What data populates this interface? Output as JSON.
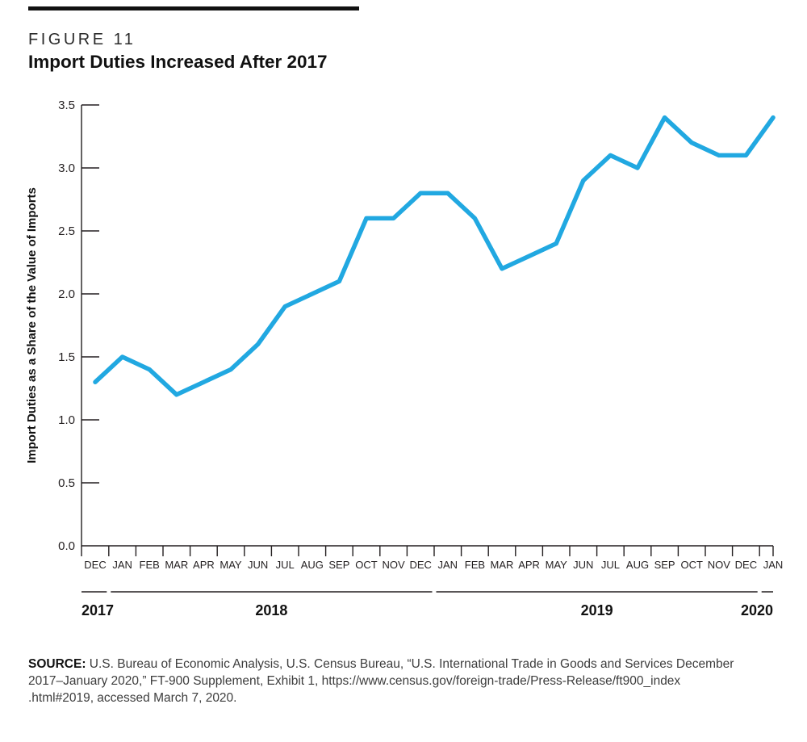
{
  "figure": {
    "label": "FIGURE 11",
    "title": "Import Duties Increased After 2017"
  },
  "chart_data": {
    "type": "line",
    "title": "Import Duties Increased After 2017",
    "xlabel": "",
    "ylabel": "Import Duties as a Share of the Value of Imports",
    "ylim": [
      0,
      3.5
    ],
    "grid": false,
    "legend": "none",
    "yticks": [
      "0.0",
      "0.5",
      "1.0",
      "1.5",
      "2.0",
      "2.5",
      "3.0",
      "3.5"
    ],
    "categories": [
      "DEC",
      "JAN",
      "FEB",
      "MAR",
      "APR",
      "MAY",
      "JUN",
      "JUL",
      "AUG",
      "SEP",
      "OCT",
      "NOV",
      "DEC",
      "JAN",
      "FEB",
      "MAR",
      "APR",
      "MAY",
      "JUN",
      "JUL",
      "AUG",
      "SEP",
      "OCT",
      "NOV",
      "DEC",
      "JAN"
    ],
    "year_groups": [
      {
        "label": "2017",
        "start": 0,
        "end": 0
      },
      {
        "label": "2018",
        "start": 1,
        "end": 12
      },
      {
        "label": "2019",
        "start": 13,
        "end": 24
      },
      {
        "label": "2020",
        "start": 25,
        "end": 25
      }
    ],
    "series": [
      {
        "name": "Import duties as a share of the value of imports",
        "color": "#21A8E1",
        "values": [
          1.3,
          1.5,
          1.4,
          1.2,
          1.3,
          1.4,
          1.6,
          1.9,
          2.0,
          2.1,
          2.6,
          2.6,
          2.8,
          2.8,
          2.6,
          2.2,
          2.3,
          2.4,
          2.9,
          3.1,
          3.0,
          3.4,
          3.2,
          3.1,
          3.1,
          3.4
        ]
      }
    ],
    "axis_color": "#231f20"
  },
  "source": {
    "label": "SOURCE:",
    "line1": " U.S. Bureau of Economic Analysis, U.S. Census Bureau, “U.S. International Trade in Goods and Services December",
    "line2": "2017–January 2020,” FT-900 Supplement, Exhibit 1, https://www.census.gov/foreign-trade/Press-Release/ft900_index",
    "line3": ".html#2019, accessed March 7, 2020."
  }
}
